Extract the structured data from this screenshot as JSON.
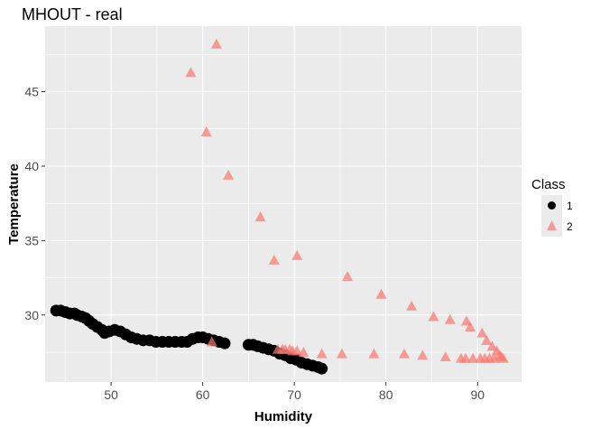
{
  "chart_data": {
    "type": "scatter",
    "title": "MHOUT - real",
    "xlabel": "Humidity",
    "ylabel": "Temperature",
    "xlim": [
      42.8,
      94.8
    ],
    "ylim": [
      25.5,
      49.4
    ],
    "x_ticks": [
      50,
      60,
      70,
      80,
      90
    ],
    "y_ticks": [
      30,
      35,
      40,
      45
    ],
    "grid": true,
    "legend": {
      "title": "Class",
      "position": "right"
    },
    "series": [
      {
        "name": "1",
        "marker": "circle",
        "color": "#000000",
        "points": [
          [
            44.0,
            30.3
          ],
          [
            44.5,
            30.3
          ],
          [
            45.0,
            30.2
          ],
          [
            45.5,
            30.1
          ],
          [
            46.0,
            30.1
          ],
          [
            46.3,
            30.0
          ],
          [
            46.8,
            29.9
          ],
          [
            47.2,
            29.8
          ],
          [
            47.6,
            29.6
          ],
          [
            48.0,
            29.4
          ],
          [
            48.5,
            29.2
          ],
          [
            49.0,
            29.0
          ],
          [
            49.3,
            28.8
          ],
          [
            49.8,
            28.9
          ],
          [
            50.4,
            29.0
          ],
          [
            51.0,
            28.9
          ],
          [
            51.6,
            28.7
          ],
          [
            52.2,
            28.5
          ],
          [
            52.8,
            28.4
          ],
          [
            53.5,
            28.3
          ],
          [
            54.2,
            28.3
          ],
          [
            54.9,
            28.2
          ],
          [
            55.6,
            28.2
          ],
          [
            56.3,
            28.2
          ],
          [
            57.0,
            28.2
          ],
          [
            57.7,
            28.2
          ],
          [
            58.3,
            28.2
          ],
          [
            58.9,
            28.4
          ],
          [
            59.5,
            28.5
          ],
          [
            60.0,
            28.5
          ],
          [
            60.6,
            28.4
          ],
          [
            61.2,
            28.3
          ],
          [
            61.8,
            28.2
          ],
          [
            62.4,
            28.1
          ],
          [
            65.0,
            28.0
          ],
          [
            65.5,
            28.0
          ],
          [
            66.0,
            27.9
          ],
          [
            66.6,
            27.8
          ],
          [
            67.2,
            27.7
          ],
          [
            67.8,
            27.6
          ],
          [
            68.4,
            27.4
          ],
          [
            69.0,
            27.3
          ],
          [
            69.6,
            27.1
          ],
          [
            70.2,
            27.0
          ],
          [
            70.8,
            26.8
          ],
          [
            71.4,
            26.7
          ],
          [
            72.0,
            26.6
          ],
          [
            72.6,
            26.5
          ],
          [
            73.0,
            26.4
          ]
        ]
      },
      {
        "name": "2",
        "marker": "triangle",
        "color": "#F8766D",
        "points": [
          [
            61.5,
            48.2
          ],
          [
            58.7,
            46.3
          ],
          [
            60.4,
            42.3
          ],
          [
            62.8,
            39.4
          ],
          [
            66.3,
            36.6
          ],
          [
            70.3,
            34.0
          ],
          [
            67.8,
            33.7
          ],
          [
            75.8,
            32.6
          ],
          [
            79.5,
            31.4
          ],
          [
            82.8,
            30.6
          ],
          [
            85.2,
            29.9
          ],
          [
            87.0,
            29.7
          ],
          [
            88.8,
            29.6
          ],
          [
            89.2,
            29.2
          ],
          [
            90.5,
            28.8
          ],
          [
            91.0,
            28.3
          ],
          [
            91.6,
            27.9
          ],
          [
            92.1,
            27.6
          ],
          [
            92.4,
            27.3
          ],
          [
            92.6,
            27.2
          ],
          [
            92.8,
            27.1
          ],
          [
            91.8,
            27.1
          ],
          [
            91.3,
            27.1
          ],
          [
            90.8,
            27.1
          ],
          [
            90.3,
            27.1
          ],
          [
            89.5,
            27.1
          ],
          [
            88.7,
            27.1
          ],
          [
            88.2,
            27.1
          ],
          [
            86.5,
            27.2
          ],
          [
            84.0,
            27.3
          ],
          [
            82.0,
            27.4
          ],
          [
            78.7,
            27.4
          ],
          [
            75.2,
            27.4
          ],
          [
            73.0,
            27.4
          ],
          [
            71.0,
            27.5
          ],
          [
            70.3,
            27.6
          ],
          [
            69.8,
            27.6
          ],
          [
            69.5,
            27.7
          ],
          [
            69.0,
            27.7
          ],
          [
            68.7,
            27.7
          ],
          [
            68.2,
            27.7
          ],
          [
            61.0,
            28.2
          ]
        ]
      }
    ]
  }
}
